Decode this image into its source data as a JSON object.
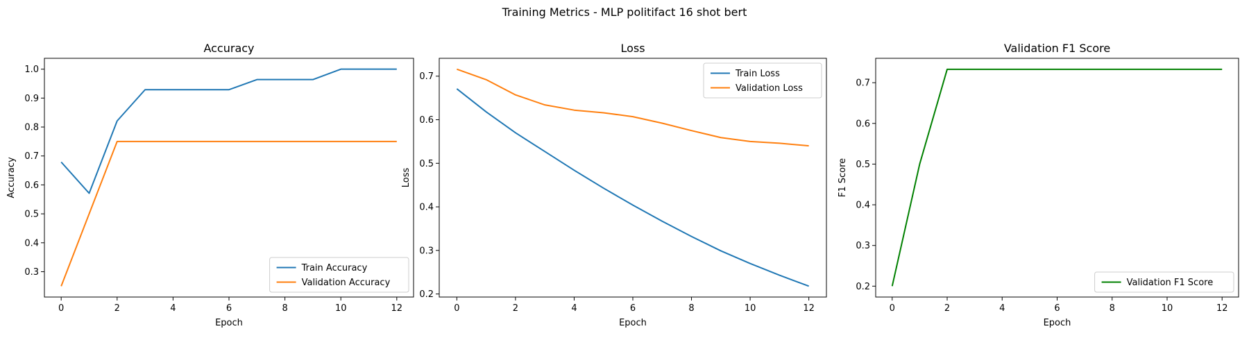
{
  "figure": {
    "title": "Training Metrics - MLP politifact 16 shot bert"
  },
  "colors": {
    "train": "#1f77b4",
    "validation": "#ff7f0e",
    "f1": "#008000"
  },
  "chart_data": [
    {
      "id": "accuracy",
      "type": "line",
      "title": "Accuracy",
      "xlabel": "Epoch",
      "ylabel": "Accuracy",
      "xlim": [
        -0.6,
        12.6
      ],
      "ylim": [
        0.2125,
        1.0375
      ],
      "xticks": [
        0,
        2,
        4,
        6,
        8,
        10,
        12
      ],
      "yticks": [
        0.3,
        0.4,
        0.5,
        0.6,
        0.7,
        0.8,
        0.9,
        1.0
      ],
      "ytick_labels": [
        "0.3",
        "0.4",
        "0.5",
        "0.6",
        "0.7",
        "0.8",
        "0.9",
        "1.0"
      ],
      "grid": false,
      "legend_position": "lower-right",
      "x": [
        0,
        1,
        2,
        3,
        4,
        5,
        6,
        7,
        8,
        9,
        10,
        11,
        12
      ],
      "series": [
        {
          "name": "Train Accuracy",
          "color": "#1f77b4",
          "values": [
            0.679,
            0.571,
            0.821,
            0.929,
            0.929,
            0.929,
            0.929,
            0.964,
            0.964,
            0.964,
            1.0,
            1.0,
            1.0
          ]
        },
        {
          "name": "Validation Accuracy",
          "color": "#ff7f0e",
          "values": [
            0.25,
            0.5,
            0.75,
            0.75,
            0.75,
            0.75,
            0.75,
            0.75,
            0.75,
            0.75,
            0.75,
            0.75,
            0.75
          ]
        }
      ]
    },
    {
      "id": "loss",
      "type": "line",
      "title": "Loss",
      "xlabel": "Epoch",
      "ylabel": "Loss",
      "xlim": [
        -0.6,
        12.6
      ],
      "ylim": [
        0.193,
        0.741
      ],
      "xticks": [
        0,
        2,
        4,
        6,
        8,
        10,
        12
      ],
      "yticks": [
        0.2,
        0.3,
        0.4,
        0.5,
        0.6,
        0.7
      ],
      "ytick_labels": [
        "0.2",
        "0.3",
        "0.4",
        "0.5",
        "0.6",
        "0.7"
      ],
      "grid": false,
      "legend_position": "upper-right",
      "x": [
        0,
        1,
        2,
        3,
        4,
        5,
        6,
        7,
        8,
        9,
        10,
        11,
        12
      ],
      "series": [
        {
          "name": "Train Loss",
          "color": "#1f77b4",
          "values": [
            0.671,
            0.618,
            0.57,
            0.527,
            0.484,
            0.443,
            0.404,
            0.367,
            0.332,
            0.299,
            0.27,
            0.243,
            0.218
          ]
        },
        {
          "name": "Validation Loss",
          "color": "#ff7f0e",
          "values": [
            0.716,
            0.692,
            0.657,
            0.634,
            0.622,
            0.616,
            0.607,
            0.592,
            0.575,
            0.559,
            0.55,
            0.546,
            0.54
          ]
        }
      ]
    },
    {
      "id": "f1",
      "type": "line",
      "title": "Validation F1 Score",
      "xlabel": "Epoch",
      "ylabel": "F1 Score",
      "xlim": [
        -0.6,
        12.6
      ],
      "ylim": [
        0.1733,
        0.76
      ],
      "xticks": [
        0,
        2,
        4,
        6,
        8,
        10,
        12
      ],
      "yticks": [
        0.2,
        0.3,
        0.4,
        0.5,
        0.6,
        0.7
      ],
      "ytick_labels": [
        "0.2",
        "0.3",
        "0.4",
        "0.5",
        "0.6",
        "0.7"
      ],
      "grid": false,
      "legend_position": "lower-right",
      "x": [
        0,
        1,
        2,
        3,
        4,
        5,
        6,
        7,
        8,
        9,
        10,
        11,
        12
      ],
      "series": [
        {
          "name": "Validation F1 Score",
          "color": "#008000",
          "values": [
            0.2,
            0.5,
            0.733,
            0.733,
            0.733,
            0.733,
            0.733,
            0.733,
            0.733,
            0.733,
            0.733,
            0.733,
            0.733
          ]
        }
      ]
    }
  ]
}
